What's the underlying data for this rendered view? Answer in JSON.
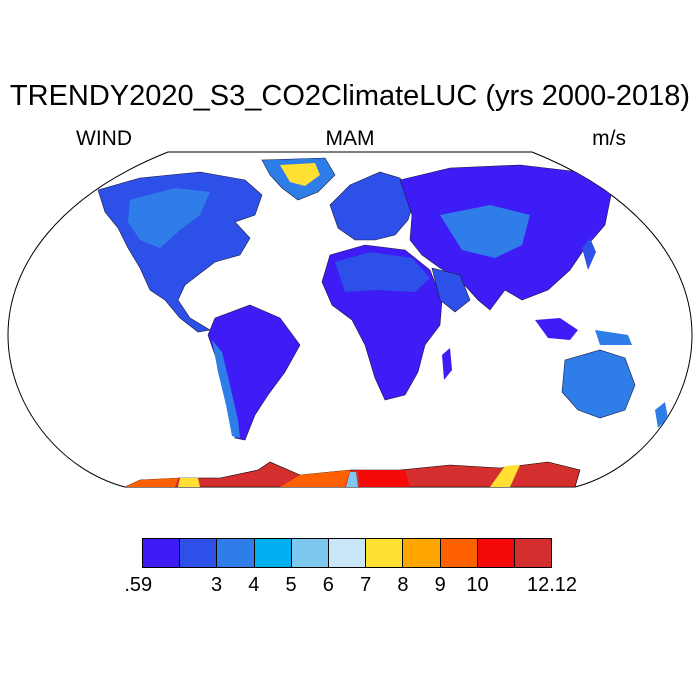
{
  "title": "TRENDY2020_S3_CO2ClimateLUC (yrs 2000-2018)",
  "left_label": "WIND",
  "center_label": "MAM",
  "right_label": "m/s",
  "colors": {
    "ocean": "#ffffff",
    "land_low": "#3d1cf5",
    "land_mid": "#2d50e8",
    "land_high": "#2f7de8",
    "antarctic": "#d42e2e"
  },
  "colorbar": {
    "colors": [
      "#3d1cf5",
      "#2d50e8",
      "#2f7de8",
      "#00b0f0",
      "#7ec8ef",
      "#c9e6f8",
      "#ffe033",
      "#ffa500",
      "#ff6000",
      "#f50a0a",
      "#d42e2e"
    ],
    "labels": [
      ".59",
      "3",
      "4",
      "5",
      "6",
      "7",
      "8",
      "9",
      "10",
      "12.12"
    ]
  }
}
